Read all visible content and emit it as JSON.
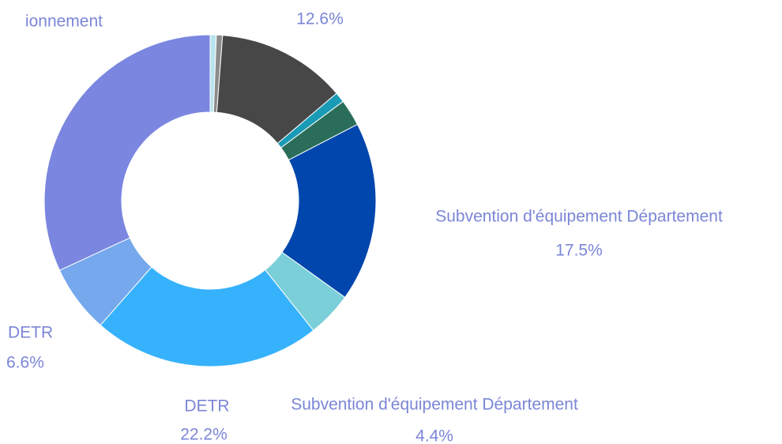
{
  "chart_data": {
    "type": "donut",
    "categories": [
      null,
      null,
      null,
      null,
      null,
      "Subvention d'équipement Département",
      "Subvention d'équipement Département",
      "DETR",
      "DETR",
      "ionnement"
    ],
    "values": [
      0.6,
      0.6,
      12.6,
      1.0,
      2.6,
      17.5,
      4.4,
      22.2,
      6.6,
      31.9
    ],
    "value_labels": [
      null,
      null,
      "12.6%",
      null,
      null,
      "17.5%",
      "4.4%",
      "22.2%",
      "6.6%",
      null
    ],
    "colors": [
      "#b9e4ee",
      "#8c8c8c",
      "#474747",
      "#1a9bb5",
      "#2a6e5a",
      "#0046ad",
      "#7acfd8",
      "#36b2fc",
      "#75a8ec",
      "#7b86e0"
    ]
  }
}
